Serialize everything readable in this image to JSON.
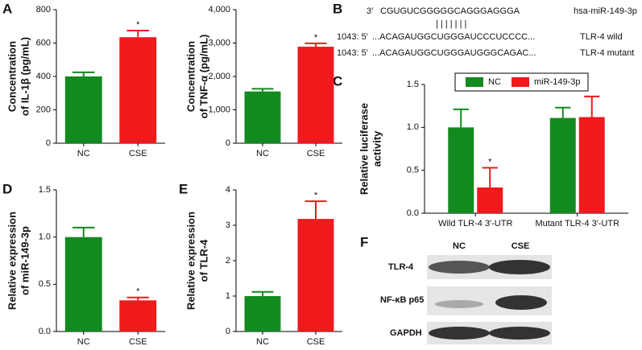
{
  "panels": {
    "a": "A",
    "b": "B",
    "c": "C",
    "d": "D",
    "e": "E",
    "f": "F"
  },
  "sequence": {
    "mirna": {
      "prefix": "3′",
      "seq": "CGUGUCGGGGGCAGGGAGGGA",
      "name": "hsa-miR-149-3p"
    },
    "pairing": "| | | | | | |",
    "wild": {
      "pos": "1043: 5′",
      "seq": "...ACAGAUGGCUGGGAUCCCUCCCC...",
      "name": "TLR-4 wild"
    },
    "mutant": {
      "pos": "1043: 5′",
      "seq": "...ACAGAUGGCUGGGAUGGGCAGAC...",
      "name": "TLR-4 mutant"
    }
  },
  "blot": {
    "columns": [
      "NC",
      "CSE"
    ],
    "rows": [
      "TLR-4",
      "NF-κB p65",
      "GAPDH"
    ]
  },
  "chart_data": [
    {
      "type": "bar",
      "y_label": [
        "Concentration",
        "of IL-1β (pg/mL)"
      ],
      "categories": [
        "NC",
        "CSE"
      ],
      "values": [
        400,
        635
      ],
      "errors": [
        25,
        40
      ],
      "significance": [
        null,
        "*"
      ],
      "colors": [
        "#138a1f",
        "#f0191c"
      ],
      "ylim": [
        0,
        800
      ],
      "yticks": [
        0,
        200,
        400,
        600,
        800
      ]
    },
    {
      "type": "bar",
      "y_label": [
        "Concentration",
        "of TNF-α (pg/mL)"
      ],
      "categories": [
        "NC",
        "CSE"
      ],
      "values": [
        1550,
        2890
      ],
      "errors": [
        80,
        100
      ],
      "significance": [
        null,
        "*"
      ],
      "colors": [
        "#138a1f",
        "#f0191c"
      ],
      "ylim": [
        0,
        4000
      ],
      "yticks": [
        0,
        {
          "value": 1000,
          "label": "1,000"
        },
        {
          "value": 2000,
          "label": "2,000"
        },
        {
          "value": 3000,
          "label": "3,000"
        },
        {
          "value": 4000,
          "label": "4,000"
        }
      ]
    },
    {
      "type": "bar",
      "y_label": [
        "Relative luciferase",
        "activity"
      ],
      "categories": [
        "Wild TLR-4 3′-UTR",
        "Mutant TLR-4 3′-UTR"
      ],
      "series": [
        {
          "name": "NC",
          "color": "#138a1f",
          "values": [
            1.0,
            1.11
          ],
          "errors": [
            0.21,
            0.12
          ],
          "significance": [
            null,
            null
          ]
        },
        {
          "name": "miR-149-3p",
          "color": "#f0191c",
          "values": [
            0.3,
            1.12
          ],
          "errors": [
            0.23,
            0.24
          ],
          "significance": [
            "*",
            null
          ]
        }
      ],
      "ylim": [
        0,
        1.5
      ],
      "yticks": [
        {
          "value": 0,
          "label": "0.0"
        },
        0.5,
        {
          "value": 1,
          "label": "1.0"
        },
        1.5
      ]
    },
    {
      "type": "bar",
      "y_label": [
        "Relative expression",
        "of miR-149-3p"
      ],
      "categories": [
        "NC",
        "CSE"
      ],
      "values": [
        1.0,
        0.33
      ],
      "errors": [
        0.1,
        0.03
      ],
      "significance": [
        null,
        "*"
      ],
      "colors": [
        "#138a1f",
        "#f0191c"
      ],
      "ylim": [
        0,
        1.5
      ],
      "yticks": [
        {
          "value": 0,
          "label": "0.0"
        },
        0.5,
        {
          "value": 1,
          "label": "1.0"
        },
        1.5
      ]
    },
    {
      "type": "bar",
      "y_label": [
        "Relative expression",
        "of TLR-4"
      ],
      "categories": [
        "NC",
        "CSE"
      ],
      "values": [
        1.0,
        3.18
      ],
      "errors": [
        0.12,
        0.5
      ],
      "significance": [
        null,
        "*"
      ],
      "colors": [
        "#138a1f",
        "#f0191c"
      ],
      "ylim": [
        0,
        4
      ],
      "yticks": [
        0,
        1,
        2,
        3,
        4
      ]
    }
  ]
}
